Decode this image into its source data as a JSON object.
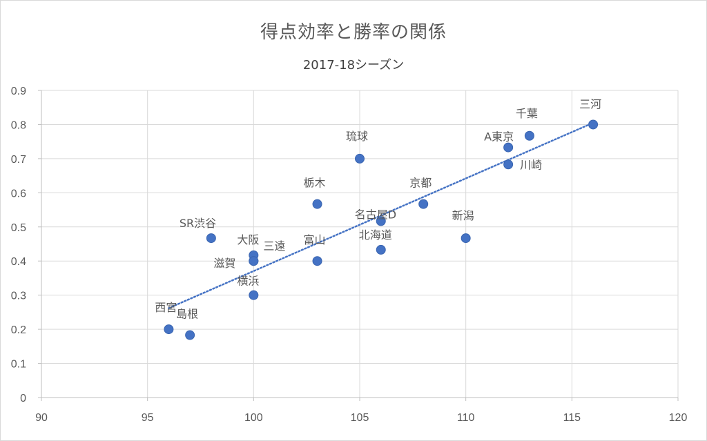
{
  "chart_data": {
    "type": "scatter",
    "title": "得点効率と勝率の関係",
    "subtitle": "2017-18シーズン",
    "xlabel": "",
    "ylabel": "",
    "xlim": [
      90,
      120
    ],
    "ylim": [
      0,
      0.9
    ],
    "x_ticks": [
      90,
      95,
      100,
      105,
      110,
      115,
      120
    ],
    "y_ticks": [
      0,
      0.1,
      0.2,
      0.3,
      0.4,
      0.5,
      0.6,
      0.7,
      0.8,
      0.9
    ],
    "x_tick_labels": [
      "90",
      "95",
      "100",
      "105",
      "110",
      "115",
      "120"
    ],
    "y_tick_labels": [
      "0",
      "0.1",
      "0.2",
      "0.3",
      "0.4",
      "0.5",
      "0.6",
      "0.7",
      "0.8",
      "0.9"
    ],
    "grid": true,
    "points": [
      {
        "label": "三河",
        "x": 116,
        "y": 0.8
      },
      {
        "label": "千葉",
        "x": 113,
        "y": 0.767
      },
      {
        "label": "A東京",
        "x": 112,
        "y": 0.733
      },
      {
        "label": "川崎",
        "x": 112,
        "y": 0.683
      },
      {
        "label": "琉球",
        "x": 105,
        "y": 0.7
      },
      {
        "label": "栃木",
        "x": 103,
        "y": 0.567
      },
      {
        "label": "京都",
        "x": 108,
        "y": 0.567
      },
      {
        "label": "名古屋D",
        "x": 106,
        "y": 0.517
      },
      {
        "label": "新潟",
        "x": 110,
        "y": 0.467
      },
      {
        "label": "SR渋谷",
        "x": 98,
        "y": 0.467
      },
      {
        "label": "北海道",
        "x": 106,
        "y": 0.433
      },
      {
        "label": "大阪",
        "x": 100,
        "y": 0.417
      },
      {
        "label": "三遠",
        "x": 100,
        "y": 0.4
      },
      {
        "label": "滋賀",
        "x": 100,
        "y": 0.4
      },
      {
        "label": "富山",
        "x": 103,
        "y": 0.4
      },
      {
        "label": "横浜",
        "x": 100,
        "y": 0.3
      },
      {
        "label": "西宮",
        "x": 96,
        "y": 0.2
      },
      {
        "label": "島根",
        "x": 97,
        "y": 0.183
      }
    ],
    "trendline": {
      "type": "linear",
      "x": [
        96,
        116
      ],
      "y": [
        0.262,
        0.805
      ],
      "style": "dotted"
    },
    "colors": {
      "marker": "#4472C4",
      "trendline": "#4472C4",
      "grid": "#d9d9d9",
      "text": "#595959"
    }
  }
}
